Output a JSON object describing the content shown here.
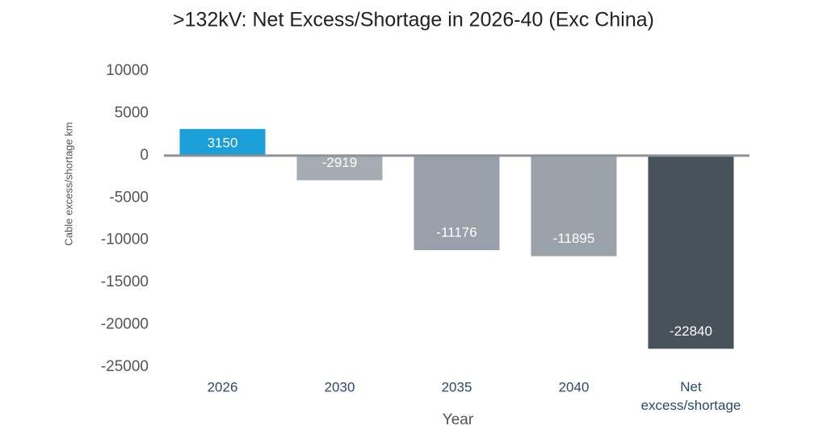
{
  "chart_data": {
    "type": "bar",
    "title": ">132kV: Net Excess/Shortage in 2026-40 (Exc China)",
    "x_label": "Year",
    "y_label": "Cable excess/shortage km",
    "categories": [
      "2026",
      "2030",
      "2035",
      "2040",
      "Net excess/shortage"
    ],
    "values": [
      3150,
      -2919,
      -11176,
      -11895,
      -22840
    ],
    "colors": [
      "#1a9fd8",
      "#a5adb3",
      "#98a1a9",
      "#9ba3aa",
      "#47525b"
    ],
    "ylim": [
      -25000,
      10000
    ],
    "yticks": [
      -25000,
      -20000,
      -15000,
      -10000,
      -5000,
      0,
      5000,
      10000
    ],
    "grid": false
  }
}
